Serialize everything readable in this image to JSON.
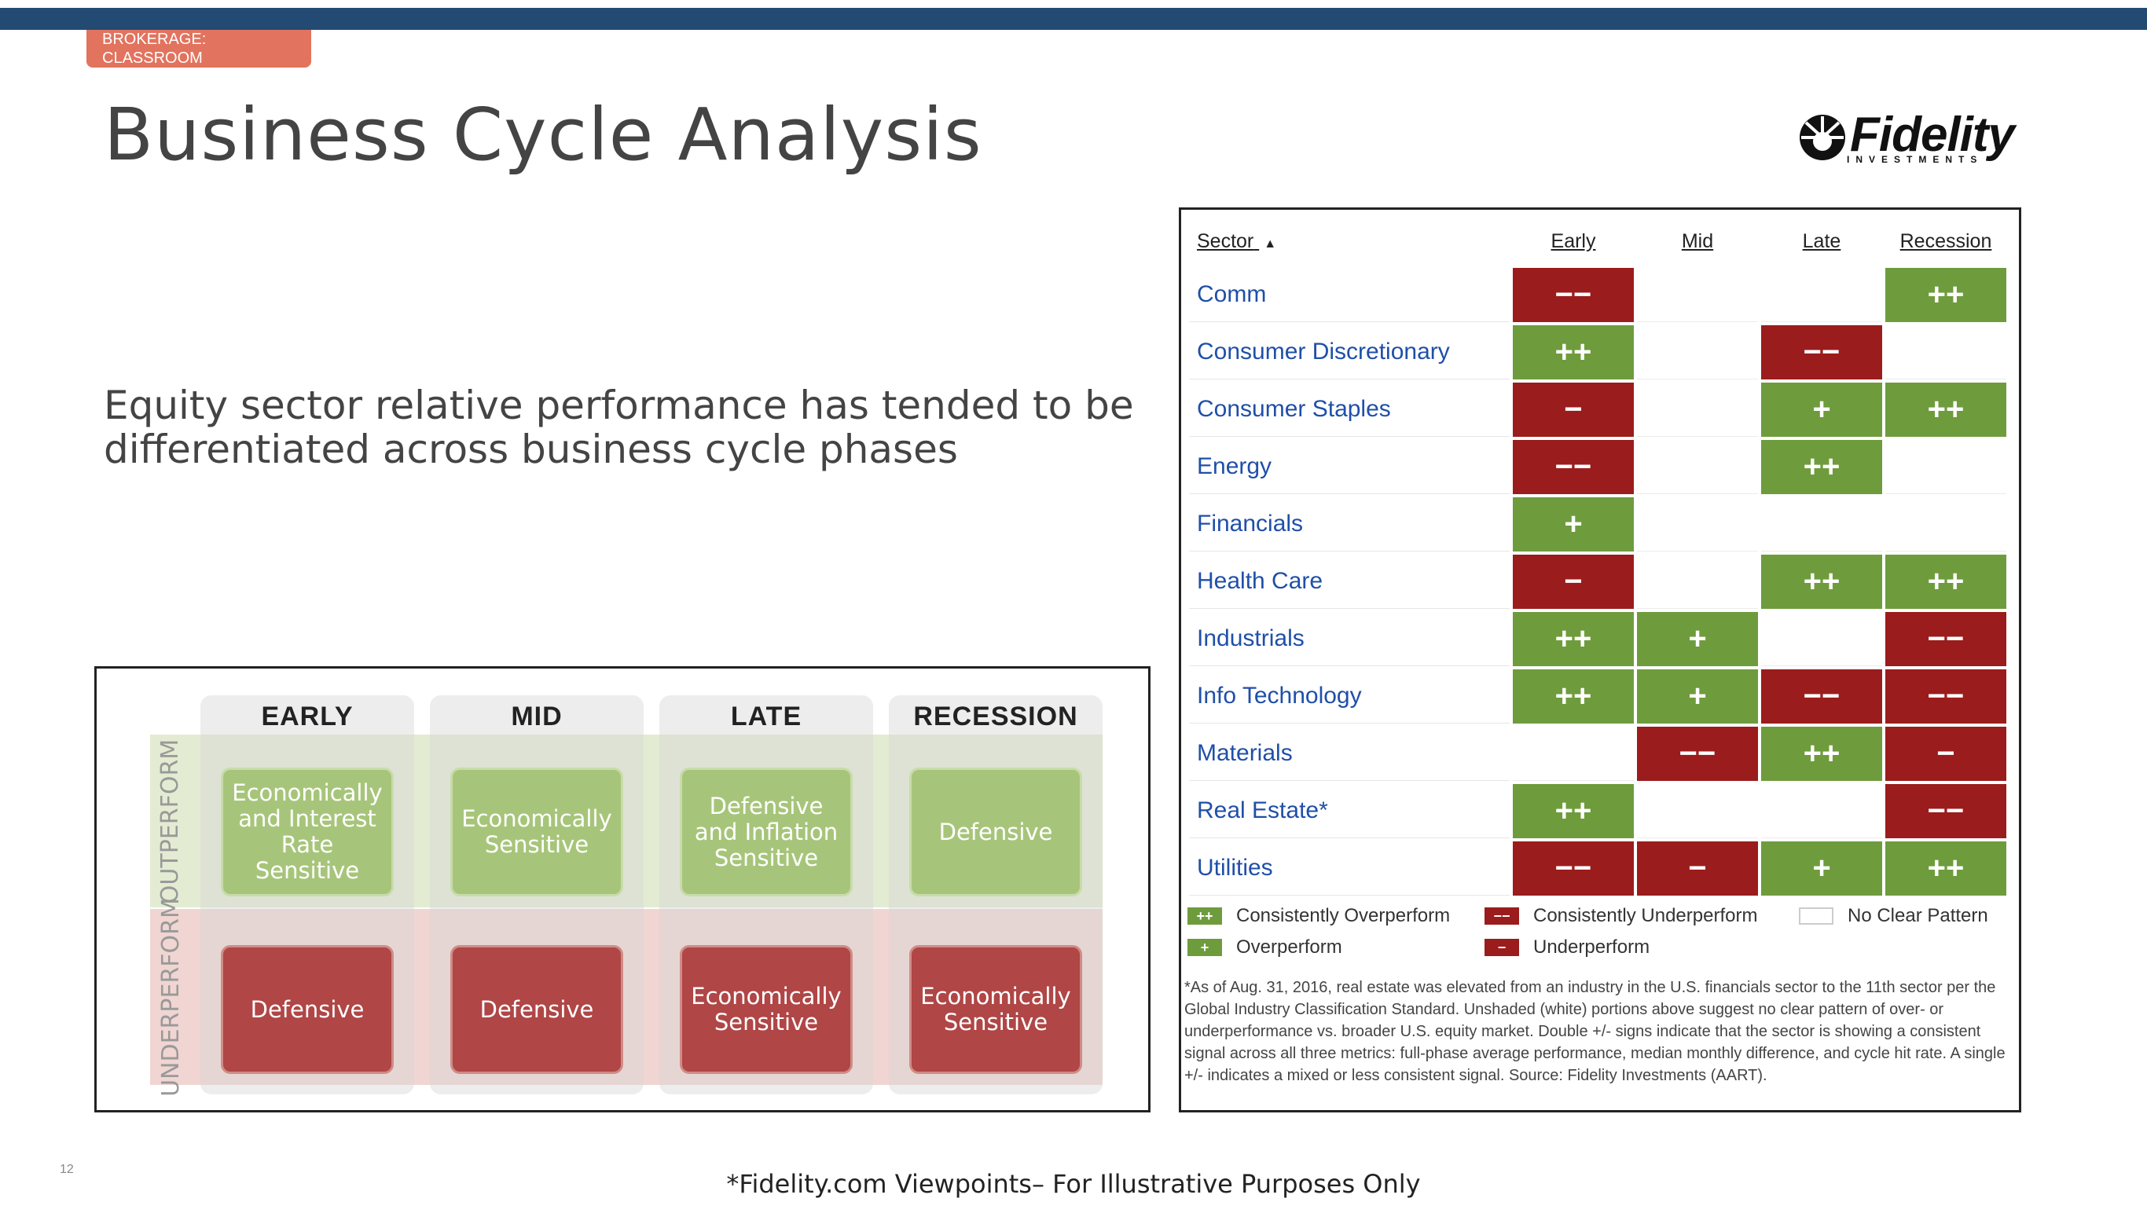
{
  "header": {
    "badge_line1": "BROKERAGE:",
    "badge_line2": "CLASSROOM",
    "title": "Business Cycle Analysis",
    "logo_word": "Fidelity",
    "logo_sub": "INVESTMENTS"
  },
  "subtitle": "Equity sector relative performance has tended to be differentiated across business cycle phases",
  "matrix": {
    "outperform_label": "OUTPERFORM",
    "underperform_label": "UNDERPERFORM",
    "columns": [
      {
        "header": "EARLY",
        "outperform": "Economically and Interest Rate Sensitive",
        "underperform": "Defensive"
      },
      {
        "header": "MID",
        "outperform": "Economically Sensitive",
        "underperform": "Defensive"
      },
      {
        "header": "LATE",
        "outperform": "Defensive and Inflation Sensitive",
        "underperform": "Economically Sensitive"
      },
      {
        "header": "RECESSION",
        "outperform": "Defensive",
        "underperform": "Economically Sensitive"
      }
    ]
  },
  "sector_table": {
    "headers": {
      "sector": "Sector",
      "early": "Early",
      "mid": "Mid",
      "late": "Late",
      "recession": "Recession"
    },
    "sort_indicator": "▲",
    "rows": [
      {
        "name": "Comm",
        "early": "−−",
        "mid": "",
        "late": "",
        "recession": "++"
      },
      {
        "name": "Consumer Discretionary",
        "early": "++",
        "mid": "",
        "late": "−−",
        "recession": ""
      },
      {
        "name": "Consumer Staples",
        "early": "−",
        "mid": "",
        "late": "+",
        "recession": "++"
      },
      {
        "name": "Energy",
        "early": "−−",
        "mid": "",
        "late": "++",
        "recession": ""
      },
      {
        "name": "Financials",
        "early": "+",
        "mid": "",
        "late": "",
        "recession": ""
      },
      {
        "name": "Health Care",
        "early": "−",
        "mid": "",
        "late": "++",
        "recession": "++"
      },
      {
        "name": "Industrials",
        "early": "++",
        "mid": "+",
        "late": "",
        "recession": "−−"
      },
      {
        "name": "Info Technology",
        "early": "++",
        "mid": "+",
        "late": "−−",
        "recession": "−−"
      },
      {
        "name": "Materials",
        "early": "",
        "mid": "−−",
        "late": "++",
        "recession": "−"
      },
      {
        "name": "Real Estate*",
        "early": "++",
        "mid": "",
        "late": "",
        "recession": "−−"
      },
      {
        "name": "Utilities",
        "early": "−−",
        "mid": "−",
        "late": "+",
        "recession": "++"
      }
    ],
    "legend": {
      "consistently_over": "Consistently Overperform",
      "consistently_under": "Consistently Underperform",
      "no_pattern": "No Clear Pattern",
      "over": "Overperform",
      "under": "Underperform",
      "sym_gg": "++",
      "sym_g": "+",
      "sym_rr": "−−",
      "sym_r": "−"
    },
    "footnote": "*As of Aug. 31, 2016, real estate was elevated from an industry in the U.S. financials sector to the 11th sector per the Global Industry Classification Standard. Unshaded (white) portions above suggest no clear pattern of over- or underperformance vs. broader U.S. equity market. Double +/- signs indicate that the sector is showing a consistent signal across all three metrics: full-phase average performance, median monthly difference, and cycle hit rate. A single +/- indicates a mixed or less consistent signal. Source: Fidelity Investments (AART)."
  },
  "page_number": "12",
  "bottom_note": "*Fidelity.com Viewpoints– For Illustrative Purposes Only",
  "colors": {
    "topbar": "#234a72",
    "badge": "#e2735e",
    "green": "#6e9c3c",
    "red": "#9b1c1c",
    "sector_link": "#1f4fa8"
  }
}
